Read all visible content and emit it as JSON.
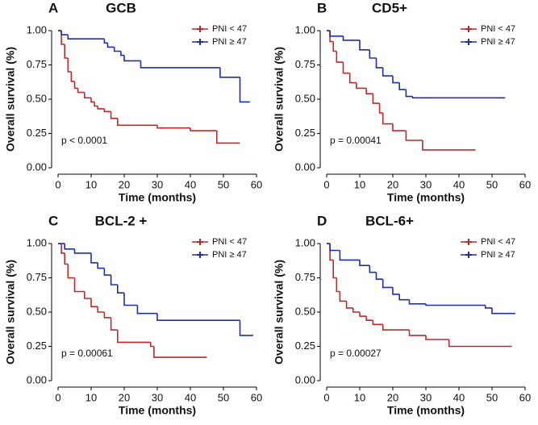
{
  "chart_data": [
    {
      "type": "line",
      "step": true,
      "panel_label": "A",
      "title": "GCB",
      "annotation": "p < 0.0001",
      "xlabel": "Time (months)",
      "ylabel": "Overall survival (%)",
      "xlim": [
        0,
        60
      ],
      "xticks": [
        0,
        10,
        20,
        30,
        40,
        50,
        60
      ],
      "ylim": [
        0,
        1
      ],
      "yticks": [
        {
          "value": 0,
          "label": "0.00"
        },
        {
          "value": 0.25,
          "label": "0.25"
        },
        {
          "value": 0.5,
          "label": "0.50"
        },
        {
          "value": 0.75,
          "label": "0.75"
        },
        {
          "value": 1,
          "label": "1.00"
        }
      ],
      "series": [
        {
          "name": "PNI < 47",
          "color": "#c0282a",
          "x": [
            0,
            1,
            2,
            3,
            4,
            5,
            6,
            8,
            10,
            11,
            12,
            14,
            16,
            18,
            30,
            40,
            48,
            55
          ],
          "values": [
            1,
            0.9,
            0.8,
            0.7,
            0.63,
            0.58,
            0.55,
            0.51,
            0.48,
            0.45,
            0.43,
            0.41,
            0.36,
            0.31,
            0.29,
            0.27,
            0.18,
            0.18
          ]
        },
        {
          "name": "PNI ≥ 47",
          "color": "#1f2fa8",
          "x": [
            0,
            1,
            3,
            14,
            15,
            17,
            19,
            20,
            25,
            49,
            55,
            58
          ],
          "values": [
            1,
            0.97,
            0.94,
            0.91,
            0.88,
            0.85,
            0.82,
            0.78,
            0.73,
            0.66,
            0.48,
            0.48
          ]
        }
      ]
    },
    {
      "type": "line",
      "step": true,
      "panel_label": "B",
      "title": "CD5+",
      "annotation": "p = 0.00041",
      "xlabel": "Time (months)",
      "ylabel": "Overall survival (%)",
      "xlim": [
        0,
        60
      ],
      "xticks": [
        0,
        10,
        20,
        30,
        40,
        50,
        60
      ],
      "ylim": [
        0,
        1
      ],
      "yticks": [
        {
          "value": 0,
          "label": "0.00"
        },
        {
          "value": 0.25,
          "label": "0.25"
        },
        {
          "value": 0.5,
          "label": "0.50"
        },
        {
          "value": 0.75,
          "label": "0.75"
        },
        {
          "value": 1,
          "label": "1.00"
        }
      ],
      "series": [
        {
          "name": "PNI < 47",
          "color": "#c0282a",
          "x": [
            0,
            1,
            2,
            3,
            5,
            7,
            9,
            12,
            14,
            16,
            17,
            20,
            24,
            29,
            45
          ],
          "values": [
            1,
            0.92,
            0.85,
            0.77,
            0.69,
            0.62,
            0.58,
            0.54,
            0.47,
            0.4,
            0.32,
            0.27,
            0.2,
            0.13,
            0.13
          ]
        },
        {
          "name": "PNI ≥ 47",
          "color": "#1f2fa8",
          "x": [
            0,
            1,
            5,
            10,
            13,
            15,
            17,
            20,
            22,
            24,
            26,
            54
          ],
          "values": [
            1,
            0.96,
            0.93,
            0.86,
            0.8,
            0.73,
            0.67,
            0.62,
            0.57,
            0.52,
            0.51,
            0.51
          ]
        }
      ]
    },
    {
      "type": "line",
      "step": true,
      "panel_label": "C",
      "title": "BCL-2 +",
      "annotation": "p = 0.00061",
      "xlabel": "Time (months)",
      "ylabel": "Overall survival (%)",
      "xlim": [
        0,
        60
      ],
      "xticks": [
        0,
        10,
        20,
        30,
        40,
        50,
        60
      ],
      "ylim": [
        0,
        1
      ],
      "yticks": [
        {
          "value": 0,
          "label": "0.00"
        },
        {
          "value": 0.25,
          "label": "0.25"
        },
        {
          "value": 0.5,
          "label": "0.50"
        },
        {
          "value": 0.75,
          "label": "0.75"
        },
        {
          "value": 1,
          "label": "1.00"
        }
      ],
      "series": [
        {
          "name": "PNI < 47",
          "color": "#c0282a",
          "x": [
            0,
            1,
            2,
            3,
            5,
            8,
            10,
            12,
            14,
            16,
            18,
            28,
            29,
            45
          ],
          "values": [
            1,
            0.93,
            0.85,
            0.75,
            0.65,
            0.6,
            0.54,
            0.5,
            0.46,
            0.37,
            0.28,
            0.25,
            0.17,
            0.17
          ]
        },
        {
          "name": "PNI ≥ 47",
          "color": "#1f2fa8",
          "x": [
            0,
            2,
            5,
            10,
            12,
            14,
            16,
            18,
            20,
            24,
            30,
            55,
            59
          ],
          "values": [
            1,
            0.96,
            0.93,
            0.86,
            0.82,
            0.77,
            0.7,
            0.64,
            0.55,
            0.49,
            0.44,
            0.33,
            0.33
          ]
        }
      ]
    },
    {
      "type": "line",
      "step": true,
      "panel_label": "D",
      "title": "BCL-6+",
      "annotation": "p = 0.00027",
      "xlabel": "Time (months)",
      "ylabel": "Overall survival (%)",
      "xlim": [
        0,
        60
      ],
      "xticks": [
        0,
        10,
        20,
        30,
        40,
        50,
        60
      ],
      "ylim": [
        0,
        1
      ],
      "yticks": [
        {
          "value": 0,
          "label": "0.00"
        },
        {
          "value": 0.25,
          "label": "0.25"
        },
        {
          "value": 0.5,
          "label": "0.50"
        },
        {
          "value": 0.75,
          "label": "0.75"
        },
        {
          "value": 1,
          "label": "1.00"
        }
      ],
      "series": [
        {
          "name": "PNI < 47",
          "color": "#c0282a",
          "x": [
            0,
            1,
            2,
            3,
            4,
            6,
            8,
            10,
            12,
            14,
            17,
            25,
            30,
            37,
            56
          ],
          "values": [
            1,
            0.88,
            0.75,
            0.65,
            0.58,
            0.53,
            0.5,
            0.47,
            0.44,
            0.41,
            0.37,
            0.33,
            0.3,
            0.25,
            0.25
          ]
        },
        {
          "name": "PNI ≥ 47",
          "color": "#1f2fa8",
          "x": [
            0,
            1,
            4,
            10,
            13,
            15,
            17,
            20,
            22,
            25,
            30,
            48,
            50,
            57
          ],
          "values": [
            1,
            0.95,
            0.88,
            0.84,
            0.79,
            0.74,
            0.68,
            0.63,
            0.59,
            0.56,
            0.55,
            0.53,
            0.49,
            0.49
          ]
        }
      ]
    }
  ]
}
